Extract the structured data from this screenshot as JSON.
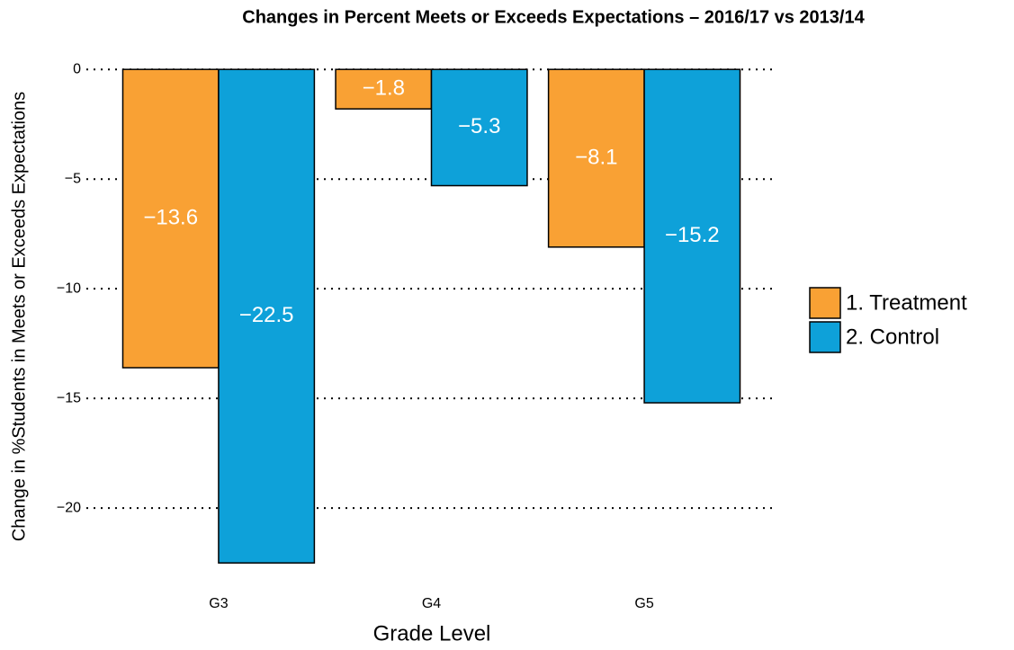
{
  "chart_data": {
    "type": "bar",
    "title": "Changes in Percent Meets or Exceeds Expectations – 2016/17 vs 2013/14",
    "x_label": "Grade Level",
    "y_label": "Change in %Students in Meets or Exceeds Expectations",
    "categories": [
      "G3",
      "G4",
      "G5"
    ],
    "series": [
      {
        "name": "1. Treatment",
        "color": "#f9a134",
        "values": [
          -13.6,
          -1.8,
          -8.1
        ],
        "value_labels": [
          "−13.6",
          "−1.8",
          "−8.1"
        ]
      },
      {
        "name": "2. Control",
        "color": "#0ea1d9",
        "values": [
          -22.5,
          -5.3,
          -15.2
        ],
        "value_labels": [
          "−22.5",
          "−5.3",
          "−15.2"
        ]
      }
    ],
    "ylim": [
      -23.6,
      0.5
    ],
    "yticks": [
      {
        "value": 0,
        "label": "0"
      },
      {
        "value": -5,
        "label": "−5"
      },
      {
        "value": -10,
        "label": "−10"
      },
      {
        "value": -15,
        "label": "−15"
      },
      {
        "value": -20,
        "label": "−20"
      }
    ],
    "grid": true,
    "legend": "right"
  }
}
